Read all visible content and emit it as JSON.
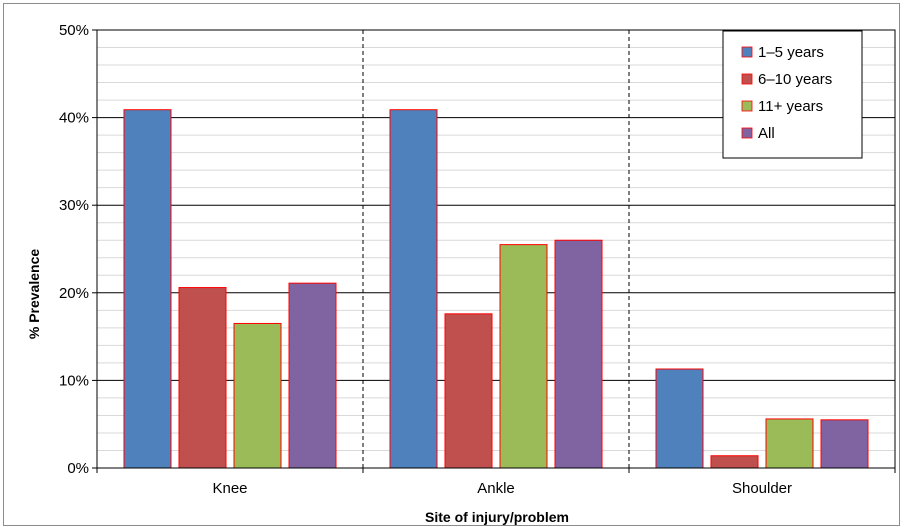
{
  "chart_data": {
    "type": "bar",
    "title": "",
    "xlabel": "Site of injury/problem",
    "ylabel": "% Prevalence",
    "ylim": [
      0,
      50
    ],
    "y_ticks": [
      "0%",
      "10%",
      "20%",
      "30%",
      "40%",
      "50%"
    ],
    "categories": [
      "Knee",
      "Ankle",
      "Shoulder"
    ],
    "series": [
      {
        "name": "1–5 years",
        "color": "#4f81bd",
        "values": [
          40.9,
          40.9,
          11.3
        ]
      },
      {
        "name": "6–10 years",
        "color": "#c0504d",
        "values": [
          20.6,
          17.6,
          1.4
        ]
      },
      {
        "name": "11+ years",
        "color": "#9bbb59",
        "values": [
          16.5,
          25.5,
          5.6
        ]
      },
      {
        "name": "All",
        "color": "#8064a2",
        "values": [
          21.1,
          26.0,
          5.5
        ]
      }
    ],
    "bar_outline_color": "#ff0000",
    "grid": true,
    "legend_position": "top-right"
  }
}
